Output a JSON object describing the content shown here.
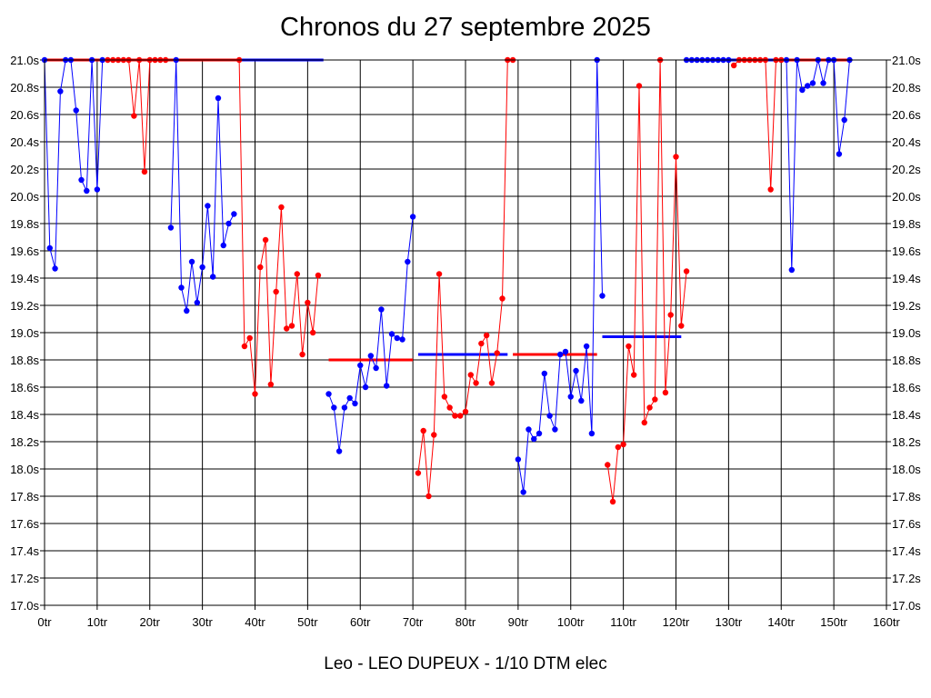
{
  "chart_data": {
    "type": "line",
    "title": "Chronos du 27 septembre 2025",
    "subtitle": "Leo - LEO DUPEUX - 1/10 DTM elec",
    "xlim": [
      0,
      160
    ],
    "ylim": [
      17.0,
      21.0
    ],
    "grid": true,
    "x_ticks": [
      0,
      10,
      20,
      30,
      40,
      50,
      60,
      70,
      80,
      90,
      100,
      110,
      120,
      130,
      140,
      150,
      160
    ],
    "x_tick_labels": [
      "0tr",
      "10tr",
      "20tr",
      "30tr",
      "40tr",
      "50tr",
      "60tr",
      "70tr",
      "80tr",
      "90tr",
      "100tr",
      "110tr",
      "120tr",
      "130tr",
      "140tr",
      "150tr",
      "160tr"
    ],
    "y_ticks": [
      17.0,
      17.2,
      17.4,
      17.6,
      17.8,
      18.0,
      18.2,
      18.4,
      18.6,
      18.8,
      19.0,
      19.2,
      19.4,
      19.6,
      19.8,
      20.0,
      20.2,
      20.4,
      20.6,
      20.8,
      21.0
    ],
    "y_tick_labels": [
      "17.0s",
      "17.2s",
      "17.4s",
      "17.6s",
      "17.8s",
      "18.0s",
      "18.2s",
      "18.4s",
      "18.6s",
      "18.8s",
      "19.0s",
      "19.2s",
      "19.4s",
      "19.6s",
      "19.8s",
      "20.0s",
      "20.2s",
      "20.4s",
      "20.6s",
      "20.8s",
      "21.0s"
    ],
    "colors": {
      "blue": "#0000ff",
      "red": "#ff0000",
      "grid": "#000000"
    },
    "series": [
      {
        "color": "#0000ff",
        "x": [
          0,
          1,
          2,
          3,
          4,
          5,
          6,
          7,
          8,
          9,
          10,
          11
        ],
        "y": [
          21.0,
          19.62,
          19.47,
          20.77,
          21.0,
          21.0,
          20.63,
          20.12,
          20.04,
          21.0,
          20.05,
          21.0
        ]
      },
      {
        "color": "#ff0000",
        "x": [
          12,
          13,
          14,
          15,
          16,
          17,
          18,
          19,
          20,
          21,
          22,
          23
        ],
        "y": [
          21.0,
          21.0,
          21.0,
          21.0,
          21.0,
          20.59,
          21.0,
          20.18,
          21.0,
          21.0,
          21.0,
          21.0
        ]
      },
      {
        "color": "#0000ff",
        "x": [
          24,
          25,
          26,
          27,
          28,
          29,
          30,
          31,
          32,
          33,
          34,
          35,
          36
        ],
        "y": [
          19.77,
          21.0,
          19.33,
          19.16,
          19.52,
          19.22,
          19.48,
          19.93,
          19.41,
          20.72,
          19.64,
          19.8,
          19.87
        ]
      },
      {
        "color": "#ff0000",
        "x": [
          37,
          38,
          39,
          40,
          41,
          42,
          43,
          44,
          45,
          46,
          47,
          48,
          49,
          50,
          51,
          52
        ],
        "y": [
          21.0,
          18.9,
          18.96,
          18.55,
          19.48,
          19.68,
          18.62,
          19.3,
          19.92,
          19.03,
          19.05,
          19.43,
          18.84,
          19.22,
          19.0,
          19.42
        ]
      },
      {
        "color": "#0000ff",
        "x": [
          54,
          55,
          56,
          57,
          58,
          59,
          60,
          61,
          62,
          63,
          64,
          65,
          66,
          67,
          68,
          69,
          70
        ],
        "y": [
          18.55,
          18.45,
          18.13,
          18.45,
          18.52,
          18.48,
          18.76,
          18.6,
          18.83,
          18.74,
          19.17,
          18.61,
          18.99,
          18.96,
          18.95,
          19.52,
          19.85
        ]
      },
      {
        "color": "#ff0000",
        "x": [
          71,
          72,
          73,
          74,
          75,
          76,
          77,
          78,
          79,
          80,
          81,
          82,
          83,
          84,
          85,
          86,
          87,
          88,
          89
        ],
        "y": [
          17.97,
          18.28,
          17.8,
          18.25,
          19.43,
          18.53,
          18.45,
          18.39,
          18.39,
          18.42,
          18.69,
          18.63,
          18.92,
          18.98,
          18.63,
          18.85,
          19.25,
          21.0,
          21.0
        ]
      },
      {
        "color": "#0000ff",
        "x": [
          90,
          91,
          92,
          93,
          94,
          95,
          96,
          97,
          98,
          99,
          100,
          101,
          102,
          103,
          104,
          105,
          106
        ],
        "y": [
          18.07,
          17.83,
          18.29,
          18.22,
          18.26,
          18.7,
          18.39,
          18.29,
          18.84,
          18.86,
          18.53,
          18.72,
          18.5,
          18.9,
          18.26,
          21.0,
          19.27
        ]
      },
      {
        "color": "#ff0000",
        "x": [
          107,
          108,
          109,
          110,
          111,
          112,
          113,
          114,
          115,
          116,
          117,
          118,
          119,
          120,
          121,
          122
        ],
        "y": [
          18.03,
          17.76,
          18.16,
          18.18,
          18.9,
          18.69,
          20.81,
          18.34,
          18.45,
          18.51,
          21.0,
          18.56,
          19.13,
          20.29,
          19.05,
          19.45
        ]
      },
      {
        "color": "#0000ff",
        "x": [
          122,
          123,
          124,
          125,
          126,
          127,
          128,
          129,
          130
        ],
        "y": [
          21.0,
          21.0,
          21.0,
          21.0,
          21.0,
          21.0,
          21.0,
          21.0,
          21.0
        ]
      },
      {
        "color": "#ff0000",
        "x": [
          131,
          132,
          133,
          134,
          135,
          136,
          137,
          138,
          139,
          140
        ],
        "y": [
          20.96,
          21.0,
          21.0,
          21.0,
          21.0,
          21.0,
          21.0,
          20.05,
          21.0,
          21.0
        ]
      },
      {
        "color": "#0000ff",
        "x": [
          141,
          142,
          143,
          144,
          145,
          146,
          147,
          148,
          149,
          150,
          151,
          152,
          153
        ],
        "y": [
          21.0,
          19.46,
          21.0,
          20.78,
          20.81,
          20.83,
          21.0,
          20.83,
          21.0,
          21.0,
          20.31,
          20.56,
          21.0
        ]
      }
    ],
    "averages": [
      {
        "color": "#ff0000",
        "x": [
          0,
          37
        ],
        "y": 21.0
      },
      {
        "color": "#0000ff",
        "x": [
          37,
          53
        ],
        "y": 21.0
      },
      {
        "color": "#ff0000",
        "x": [
          54,
          70
        ],
        "y": 18.8
      },
      {
        "color": "#0000ff",
        "x": [
          71,
          88
        ],
        "y": 18.84
      },
      {
        "color": "#ff0000",
        "x": [
          89,
          105
        ],
        "y": 18.84
      },
      {
        "color": "#0000ff",
        "x": [
          106,
          121
        ],
        "y": 18.97
      },
      {
        "color": "#0000ff",
        "x": [
          122,
          139
        ],
        "y": 21.0
      },
      {
        "color": "#ff0000",
        "x": [
          139,
          153
        ],
        "y": 21.0
      }
    ]
  }
}
